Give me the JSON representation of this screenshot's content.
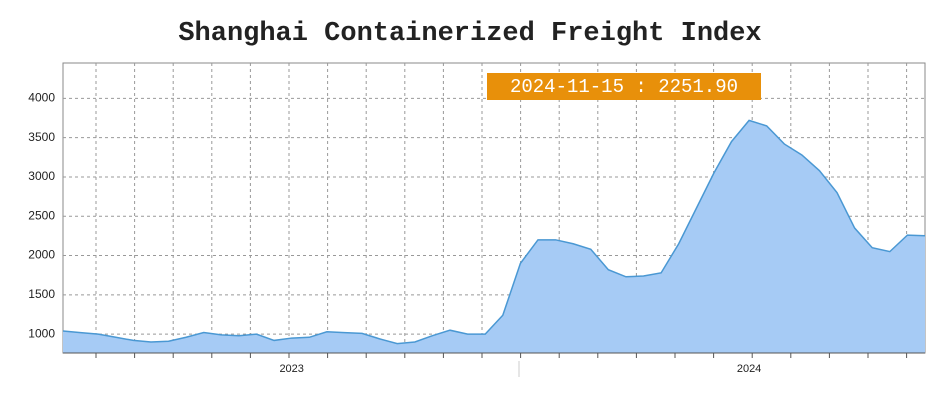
{
  "chart_data": {
    "type": "area",
    "title": "Shanghai Containerized Freight Index",
    "annotation": "2024-11-15 : 2251.90",
    "categories": [
      null,
      null,
      null,
      null,
      null,
      null,
      null,
      null,
      null,
      null,
      null,
      null,
      null,
      "2023",
      null,
      null,
      null,
      null,
      null,
      null,
      null,
      null,
      null,
      null,
      null,
      null,
      null,
      null,
      null,
      null,
      null,
      null,
      null,
      null,
      null,
      null,
      null,
      null,
      null,
      "2024",
      null,
      null,
      null,
      null,
      null,
      null,
      null,
      null,
      null,
      null
    ],
    "values": [
      1040,
      1020,
      1000,
      960,
      920,
      900,
      910,
      960,
      1020,
      990,
      980,
      1000,
      920,
      950,
      960,
      1030,
      1020,
      1010,
      940,
      880,
      900,
      980,
      1050,
      1000,
      1000,
      1240,
      1900,
      2200,
      2200,
      2150,
      2080,
      1820,
      1730,
      1740,
      1780,
      2150,
      2600,
      3050,
      3450,
      3720,
      3650,
      3420,
      3280,
      3080,
      2800,
      2350,
      2100,
      2050,
      2260,
      2251.9
    ],
    "color": "#a6cbf5",
    "line_color": "#4a98d3",
    "annotation_color": "#e8900a",
    "ylim": [
      760,
      4450
    ],
    "yticks": [
      1000,
      1500,
      2000,
      2500,
      3000,
      3500,
      4000
    ],
    "grid": true
  }
}
